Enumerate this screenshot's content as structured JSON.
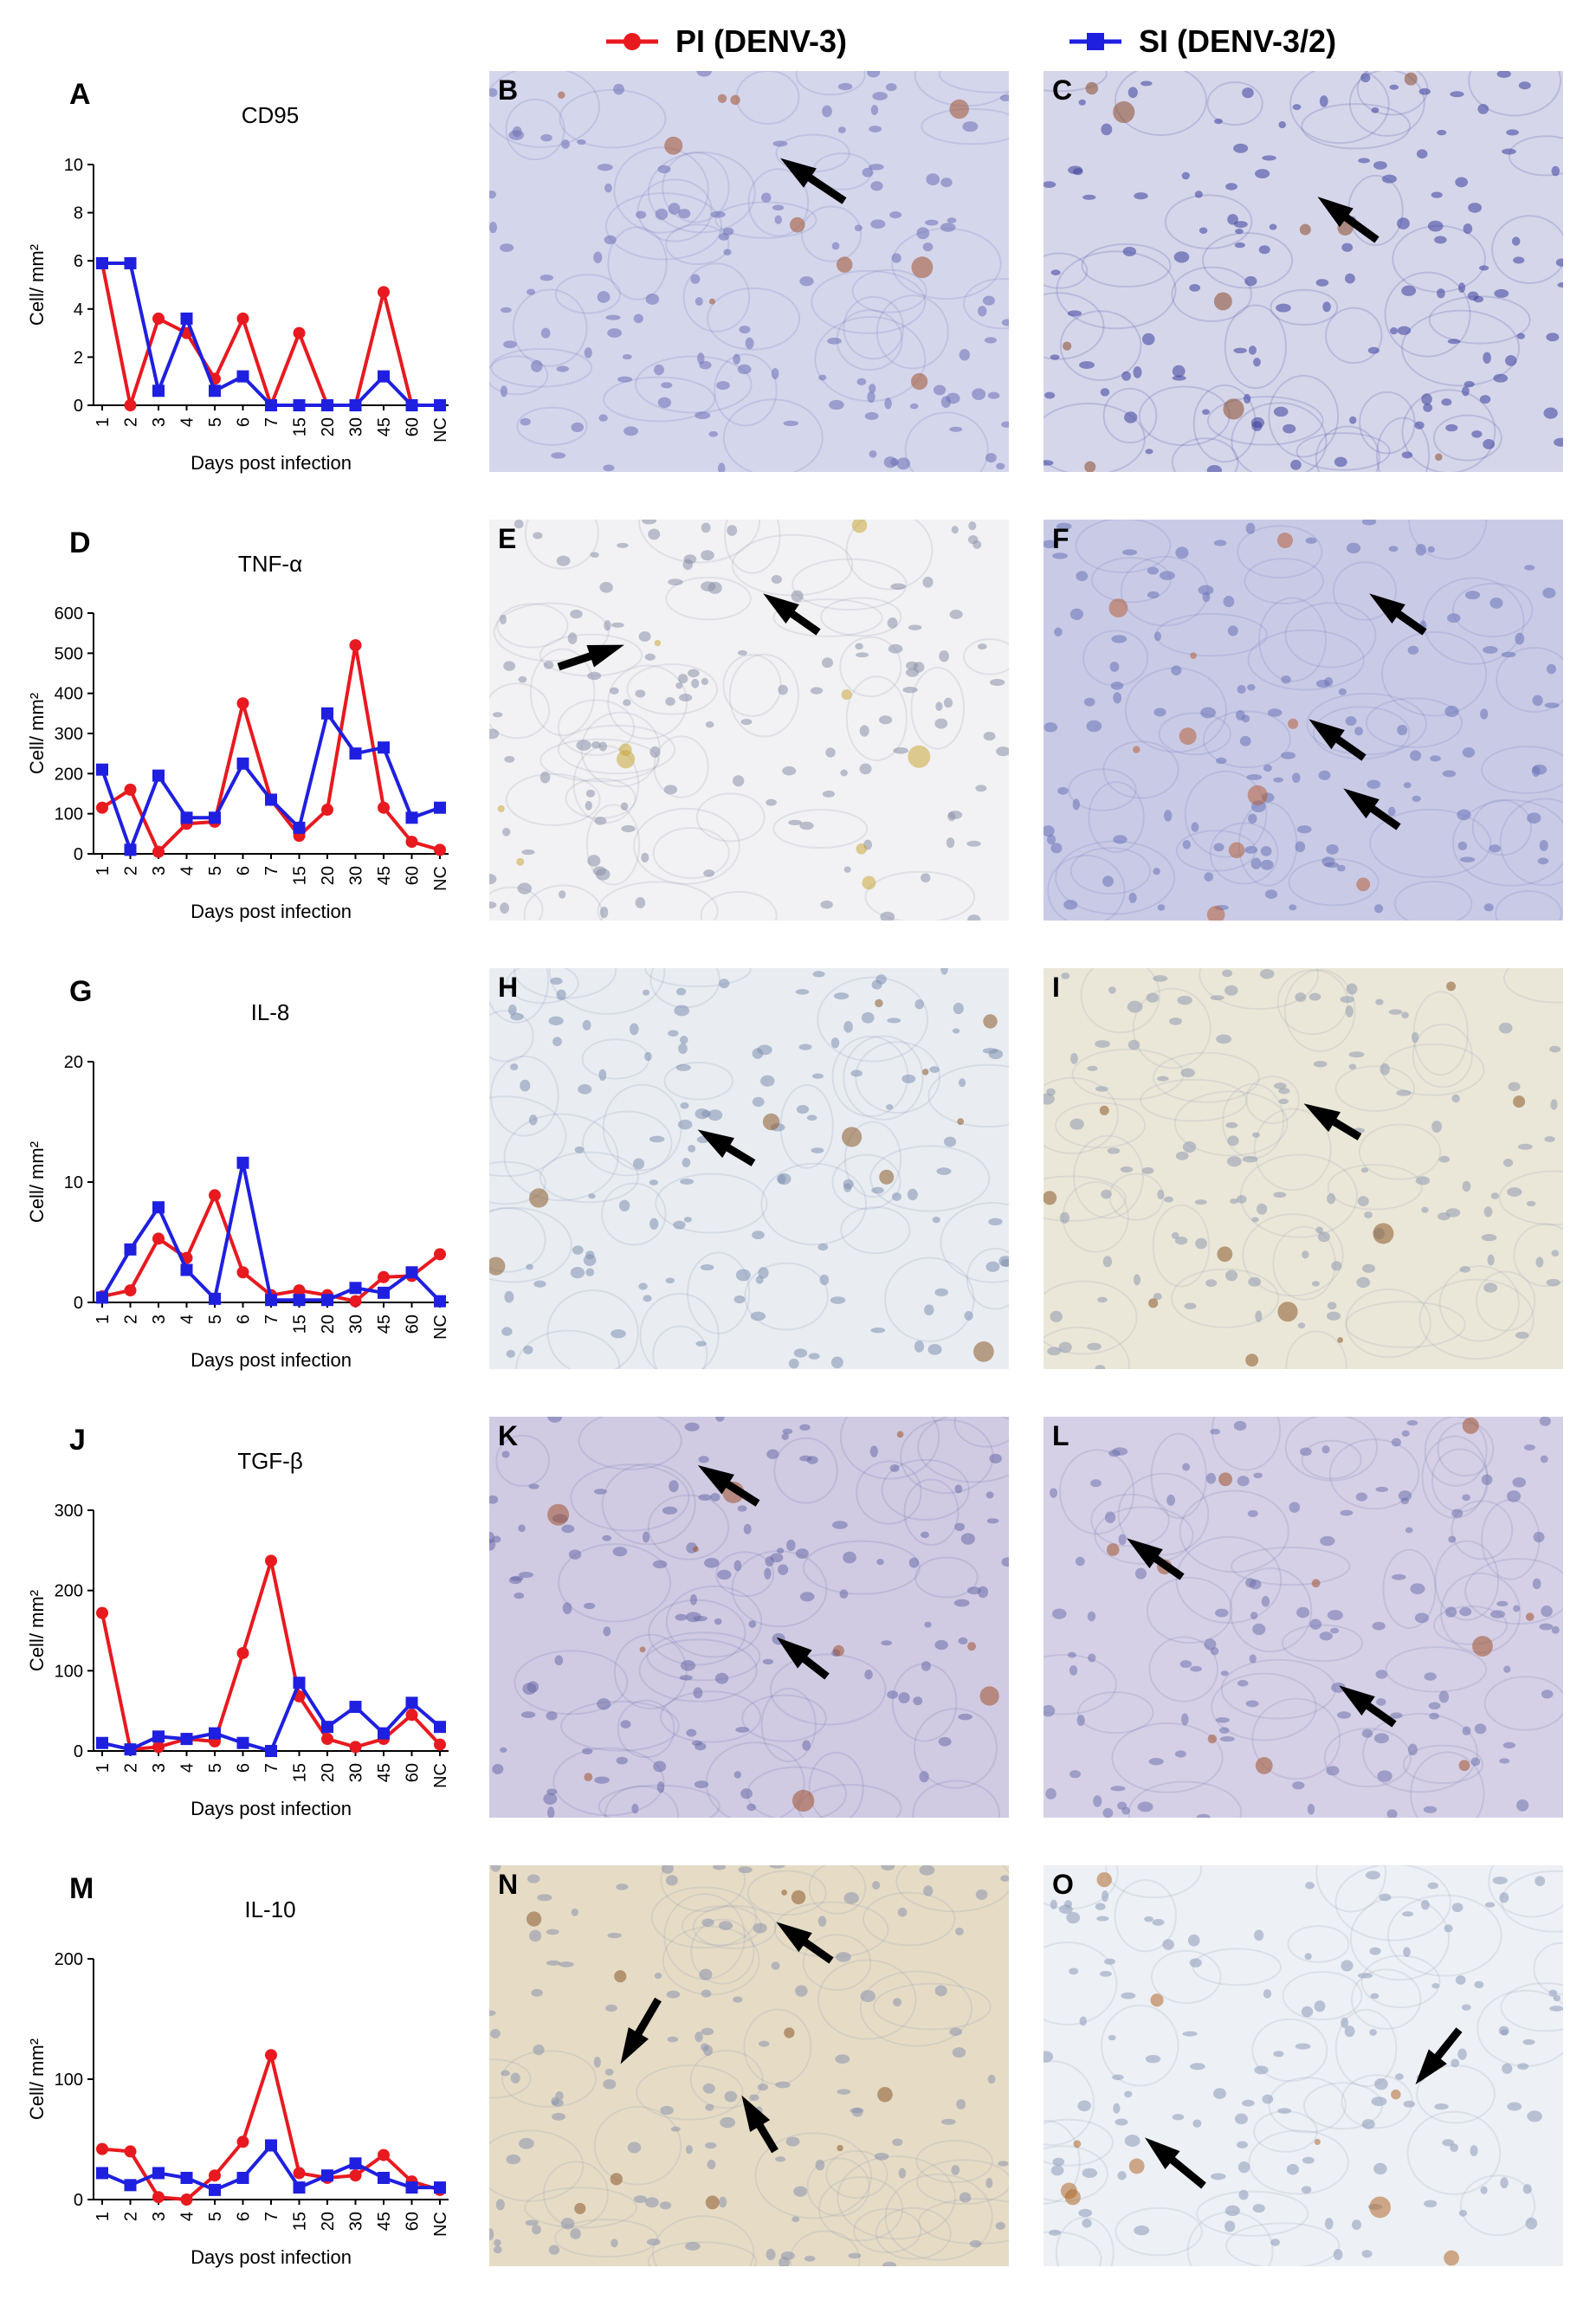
{
  "legend": {
    "pi": {
      "label": "PI (DENV-3)",
      "color": "#e8191f"
    },
    "si": {
      "label": "SI (DENV-3/2)",
      "color": "#1f1fe0"
    }
  },
  "chart_data": [
    {
      "type": "line",
      "panel": "A",
      "title": "CD95",
      "xlabel": "Days post infection",
      "ylabel": "Cell/ mm²",
      "categories": [
        "1",
        "2",
        "3",
        "4",
        "5",
        "6",
        "7",
        "15",
        "20",
        "30",
        "45",
        "60",
        "NC"
      ],
      "yticks": [
        0,
        2,
        4,
        6,
        8,
        10
      ],
      "ylim": [
        0,
        10
      ],
      "series": [
        {
          "name": "PI (DENV-3)",
          "color": "#e8191f",
          "marker": "circle",
          "values": [
            5.9,
            0,
            3.6,
            3.0,
            1.1,
            3.6,
            0,
            3.0,
            0,
            0,
            4.7,
            0,
            0
          ]
        },
        {
          "name": "SI (DENV-3/2)",
          "color": "#1f1fe0",
          "marker": "square",
          "values": [
            5.9,
            5.9,
            0.6,
            3.6,
            0.6,
            1.2,
            0,
            0,
            0,
            0,
            1.2,
            0,
            0
          ]
        }
      ]
    },
    {
      "type": "line",
      "panel": "D",
      "title": "TNF-α",
      "xlabel": "Days post infection",
      "ylabel": "Cell/ mm²",
      "categories": [
        "1",
        "2",
        "3",
        "4",
        "5",
        "6",
        "7",
        "15",
        "20",
        "30",
        "45",
        "60",
        "NC"
      ],
      "yticks": [
        0,
        100,
        200,
        300,
        400,
        500,
        600
      ],
      "ylim": [
        0,
        600
      ],
      "series": [
        {
          "name": "PI (DENV-3)",
          "color": "#e8191f",
          "marker": "circle",
          "values": [
            115,
            160,
            5,
            75,
            80,
            375,
            135,
            45,
            110,
            520,
            115,
            30,
            10
          ]
        },
        {
          "name": "SI (DENV-3/2)",
          "color": "#1f1fe0",
          "marker": "square",
          "values": [
            210,
            10,
            195,
            90,
            90,
            225,
            135,
            65,
            350,
            250,
            265,
            90,
            115
          ]
        }
      ]
    },
    {
      "type": "line",
      "panel": "G",
      "title": "IL-8",
      "xlabel": "Days post infection",
      "ylabel": "Cell/ mm²",
      "categories": [
        "1",
        "2",
        "3",
        "4",
        "5",
        "6",
        "7",
        "15",
        "20",
        "30",
        "45",
        "60",
        "NC"
      ],
      "yticks": [
        0,
        10,
        20
      ],
      "ylim": [
        0,
        20
      ],
      "series": [
        {
          "name": "PI (DENV-3)",
          "color": "#e8191f",
          "marker": "circle",
          "values": [
            0.5,
            1.0,
            5.3,
            3.7,
            8.9,
            2.5,
            0.6,
            1.0,
            0.6,
            0.1,
            2.1,
            2.2,
            4.0
          ]
        },
        {
          "name": "SI (DENV-3/2)",
          "color": "#1f1fe0",
          "marker": "square",
          "values": [
            0.4,
            4.4,
            7.9,
            2.7,
            0.3,
            11.6,
            0.2,
            0.2,
            0.2,
            1.2,
            0.8,
            2.5,
            0.1
          ]
        }
      ]
    },
    {
      "type": "line",
      "panel": "J",
      "title": "TGF-β",
      "xlabel": "Days post infection",
      "ylabel": "Cell/ mm²",
      "categories": [
        "1",
        "2",
        "3",
        "4",
        "5",
        "6",
        "7",
        "15",
        "20",
        "30",
        "45",
        "60",
        "NC"
      ],
      "yticks": [
        0,
        100,
        200,
        300
      ],
      "ylim": [
        0,
        300
      ],
      "series": [
        {
          "name": "PI (DENV-3)",
          "color": "#e8191f",
          "marker": "circle",
          "values": [
            172,
            2,
            5,
            15,
            12,
            122,
            237,
            68,
            15,
            5,
            15,
            45,
            8
          ]
        },
        {
          "name": "SI (DENV-3/2)",
          "color": "#1f1fe0",
          "marker": "square",
          "values": [
            10,
            2,
            18,
            15,
            22,
            10,
            0,
            85,
            30,
            55,
            22,
            60,
            30
          ]
        }
      ]
    },
    {
      "type": "line",
      "panel": "M",
      "title": "IL-10",
      "xlabel": "Days post infection",
      "ylabel": "Cell/ mm²",
      "categories": [
        "1",
        "2",
        "3",
        "4",
        "5",
        "6",
        "7",
        "15",
        "20",
        "30",
        "45",
        "60",
        "NC"
      ],
      "yticks": [
        0,
        100,
        200
      ],
      "ylim": [
        0,
        200
      ],
      "series": [
        {
          "name": "PI (DENV-3)",
          "color": "#e8191f",
          "marker": "circle",
          "values": [
            42,
            40,
            2,
            0,
            20,
            48,
            120,
            22,
            18,
            20,
            37,
            15,
            8
          ]
        },
        {
          "name": "SI (DENV-3/2)",
          "color": "#1f1fe0",
          "marker": "square",
          "values": [
            22,
            12,
            22,
            18,
            8,
            18,
            45,
            10,
            20,
            30,
            18,
            10,
            10
          ]
        }
      ]
    }
  ],
  "micrographs": [
    {
      "label": "B",
      "bg": "#d4d6ec",
      "cell": "#6a6fb4",
      "stain": "#a0522d"
    },
    {
      "label": "C",
      "bg": "#d6d6ea",
      "cell": "#3a3f9a",
      "stain": "#8b4a2a"
    },
    {
      "label": "E",
      "bg": "#f2f2f4",
      "cell": "#8a90a8",
      "stain": "#c9a83a"
    },
    {
      "label": "F",
      "bg": "#c9cbe6",
      "cell": "#6a72b6",
      "stain": "#b5603a"
    },
    {
      "label": "H",
      "bg": "#e9edf2",
      "cell": "#7f8fb0",
      "stain": "#8a5a2a"
    },
    {
      "label": "I",
      "bg": "#ebe7d8",
      "cell": "#8f9ab0",
      "stain": "#8a5a2a"
    },
    {
      "label": "K",
      "bg": "#d0cbe3",
      "cell": "#6a6ba8",
      "stain": "#a0522d"
    },
    {
      "label": "L",
      "bg": "#d5d0e6",
      "cell": "#7073ad",
      "stain": "#a0522d"
    },
    {
      "label": "N",
      "bg": "#e6dcc6",
      "cell": "#8b93ad",
      "stain": "#8a5a2a"
    },
    {
      "label": "O",
      "bg": "#edf0f5",
      "cell": "#8d9ab8",
      "stain": "#b06a2a"
    }
  ]
}
